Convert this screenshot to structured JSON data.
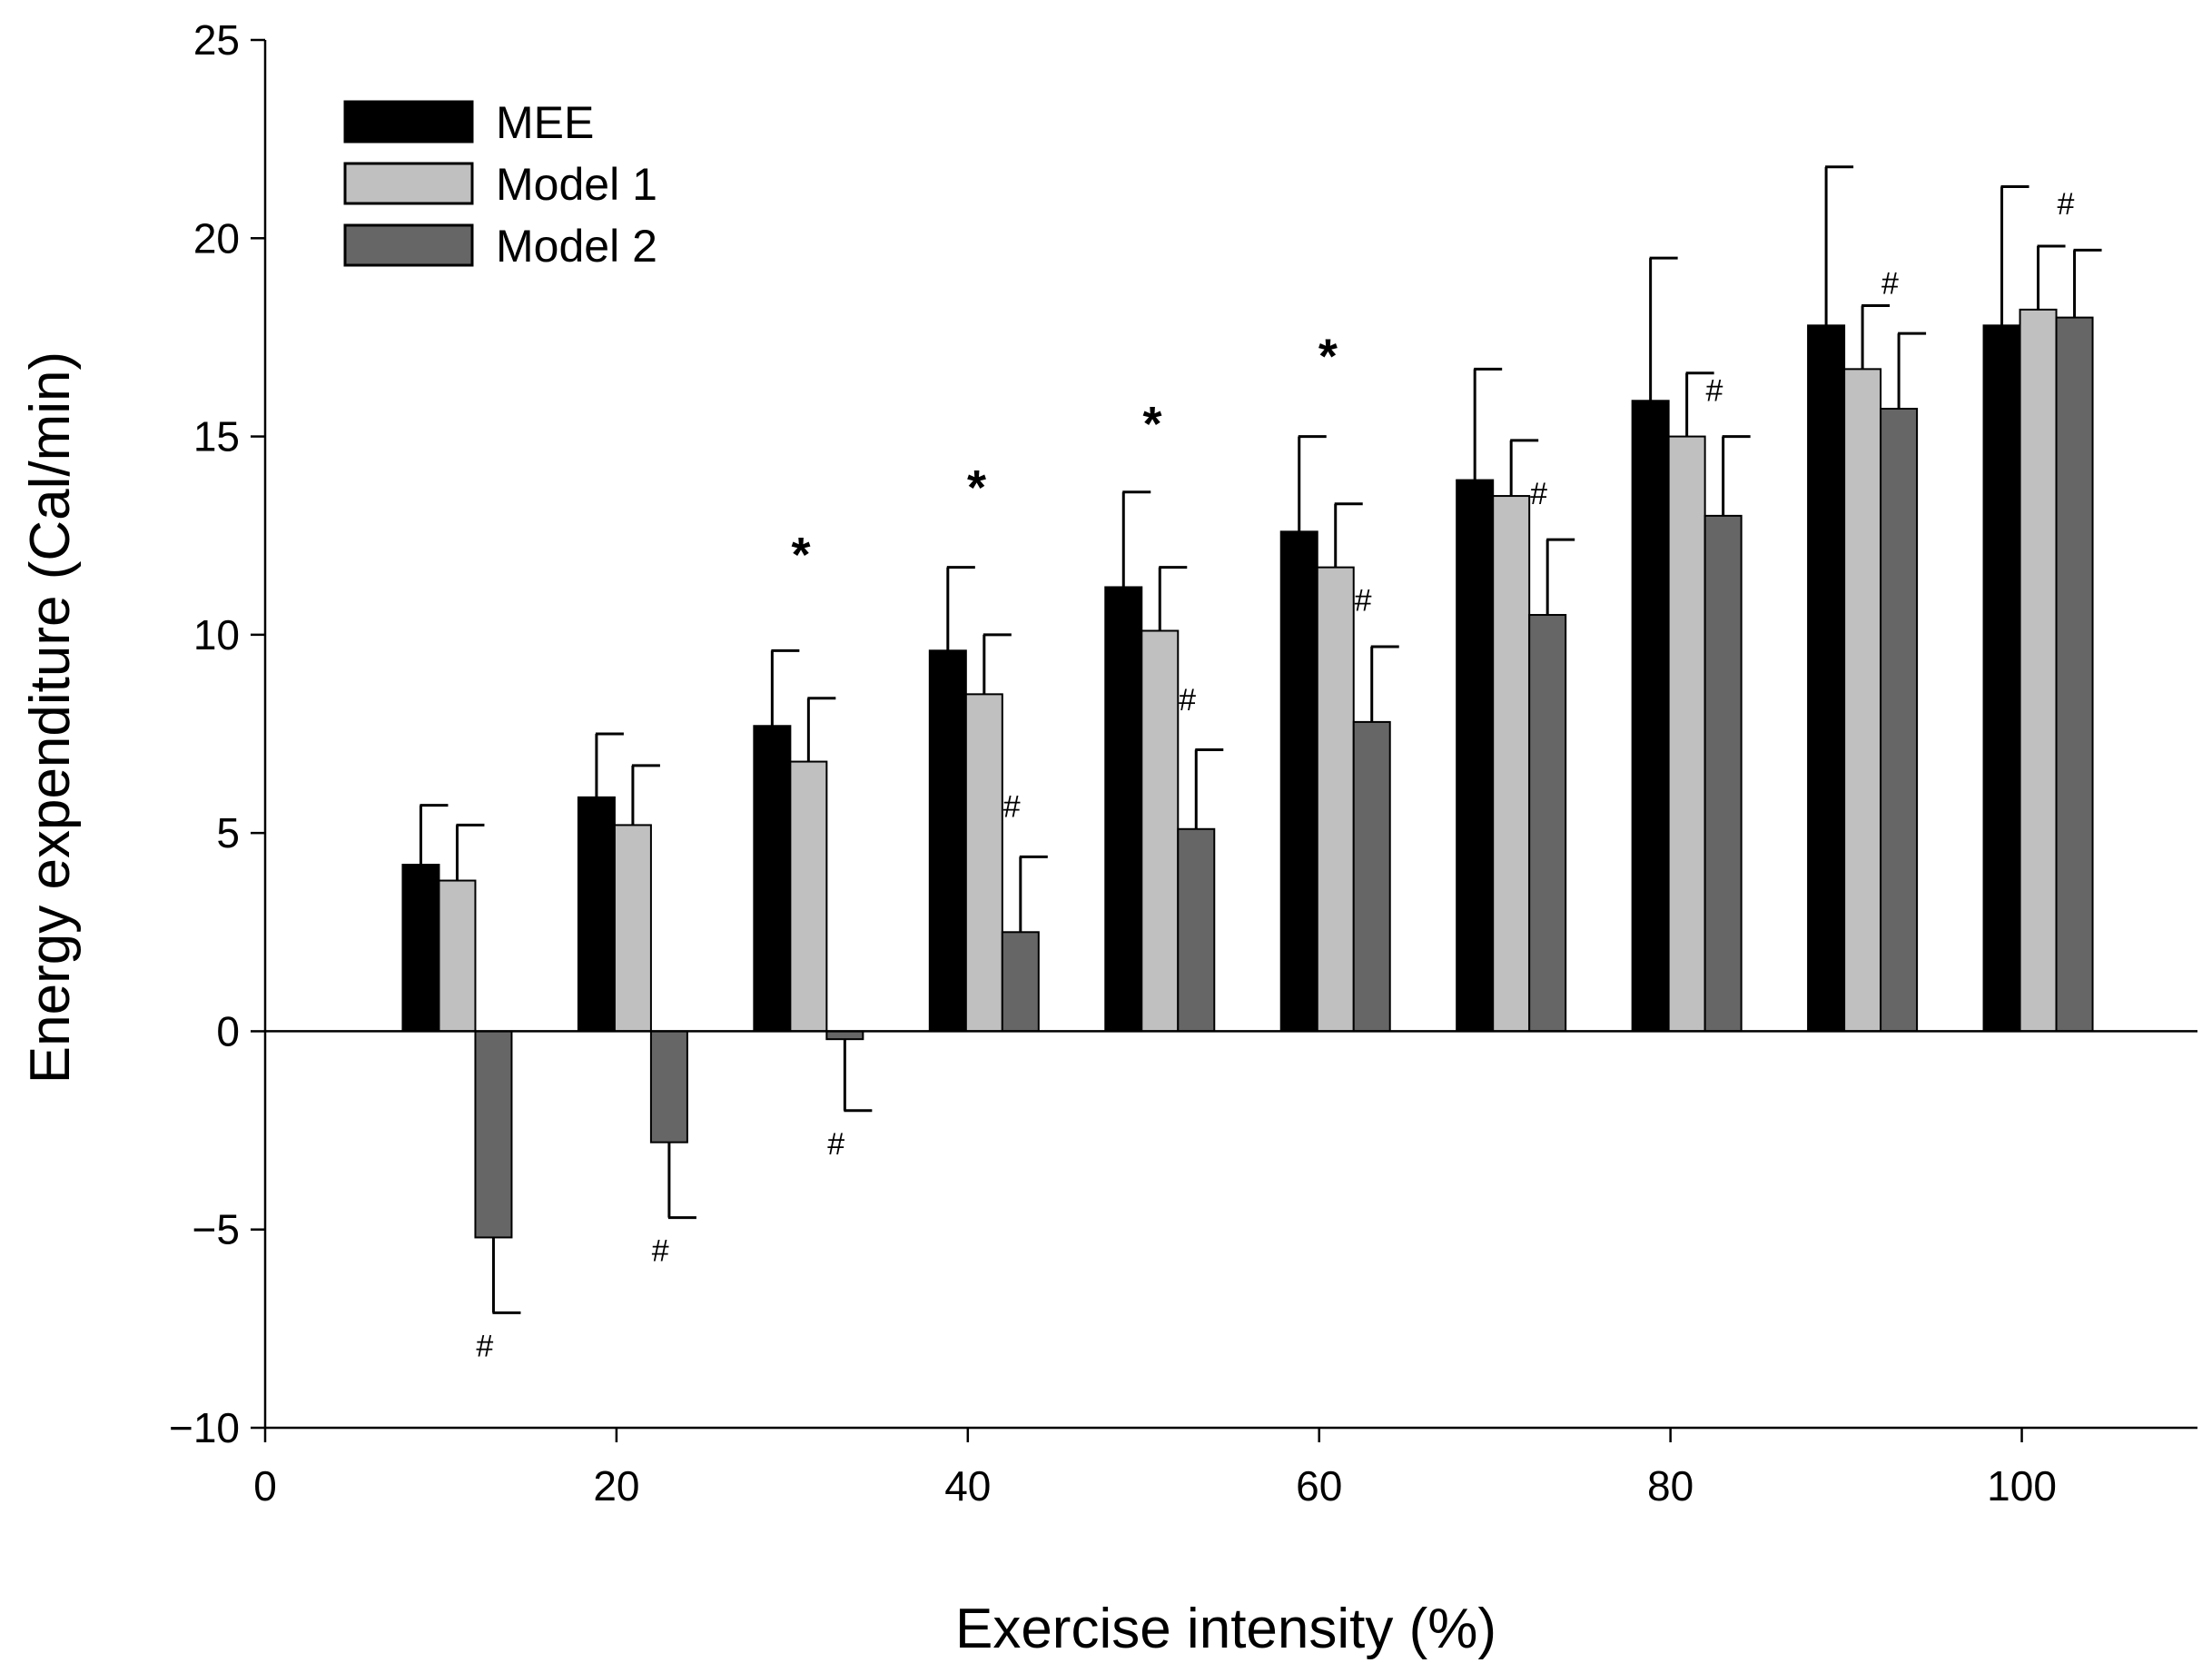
{
  "chart_data": {
    "type": "bar",
    "xlabel": "Exercise intensity (%)",
    "ylabel": "Energy expenditure (Cal/min)",
    "xlim": [
      0,
      110
    ],
    "ylim": [
      -10,
      25
    ],
    "x_ticks": [
      0,
      20,
      40,
      60,
      80,
      100
    ],
    "y_ticks": [
      -10,
      -5,
      0,
      5,
      10,
      15,
      20,
      25
    ],
    "grid": false,
    "legend_position": "top-left",
    "x": [
      10,
      20,
      30,
      40,
      50,
      60,
      70,
      80,
      90,
      100
    ],
    "series": [
      {
        "name": "MEE",
        "color": "#000000",
        "values": [
          4.2,
          5.9,
          7.7,
          9.6,
          11.2,
          12.6,
          13.9,
          15.9,
          17.8,
          17.8
        ],
        "errors": [
          1.5,
          1.6,
          1.9,
          2.1,
          2.4,
          2.4,
          2.8,
          3.6,
          4.0,
          3.5
        ]
      },
      {
        "name": "Model 1",
        "color": "#c0c0c0",
        "values": [
          3.8,
          5.2,
          6.8,
          8.5,
          10.1,
          11.7,
          13.5,
          15.0,
          16.7,
          18.2
        ],
        "errors": [
          1.4,
          1.5,
          1.6,
          1.5,
          1.6,
          1.6,
          1.4,
          1.6,
          1.6,
          1.6
        ]
      },
      {
        "name": "Model 2",
        "color": "#666666",
        "values": [
          -5.2,
          -2.8,
          -0.2,
          2.5,
          5.1,
          7.8,
          10.5,
          13.0,
          15.7,
          18.0
        ],
        "errors": [
          1.9,
          1.9,
          1.8,
          1.9,
          2.0,
          1.9,
          1.9,
          2.0,
          1.9,
          1.7
        ]
      }
    ],
    "annotations": [
      {
        "text": "#",
        "x": 12.5,
        "y": -8.2
      },
      {
        "text": "#",
        "x": 22.5,
        "y": -5.8
      },
      {
        "text": "#",
        "x": 32.5,
        "y": -3.1
      },
      {
        "text": "#",
        "x": 42.5,
        "y": 5.4
      },
      {
        "text": "#",
        "x": 52.5,
        "y": 8.1
      },
      {
        "text": "#",
        "x": 62.5,
        "y": 10.6
      },
      {
        "text": "#",
        "x": 72.5,
        "y": 13.3
      },
      {
        "text": "#",
        "x": 82.5,
        "y": 15.9
      },
      {
        "text": "#",
        "x": 92.5,
        "y": 18.6
      },
      {
        "text": "#",
        "x": 102.5,
        "y": 20.6
      },
      {
        "text": "*",
        "x": 30.5,
        "y": 11.6
      },
      {
        "text": "*",
        "x": 40.5,
        "y": 13.3
      },
      {
        "text": "*",
        "x": 50.5,
        "y": 14.9
      },
      {
        "text": "*",
        "x": 60.5,
        "y": 16.6
      }
    ]
  }
}
